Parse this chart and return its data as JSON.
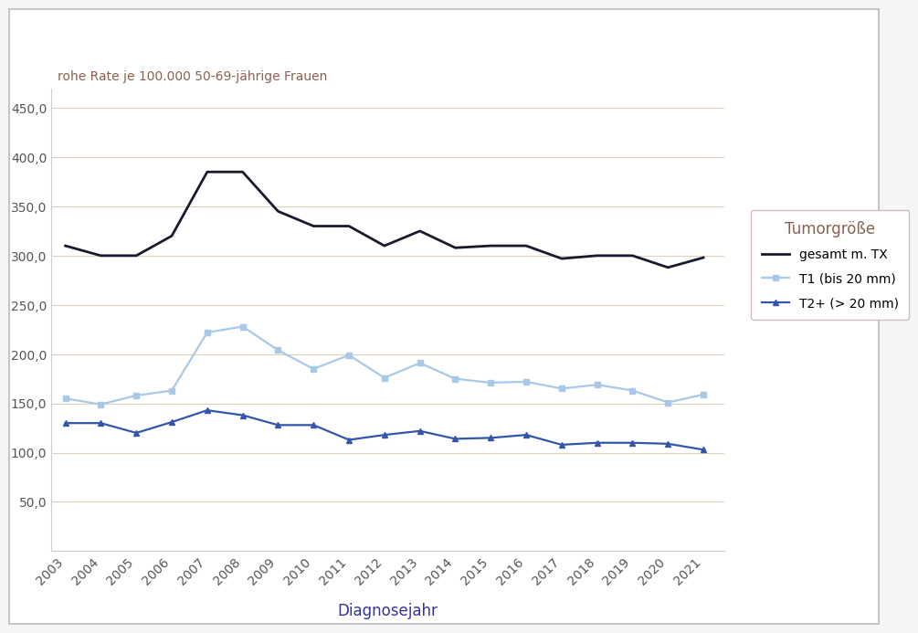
{
  "years": [
    2003,
    2004,
    2005,
    2006,
    2007,
    2008,
    2009,
    2010,
    2011,
    2012,
    2013,
    2014,
    2015,
    2016,
    2017,
    2018,
    2019,
    2020,
    2021
  ],
  "gesamt": [
    310,
    300,
    300,
    320,
    385,
    385,
    345,
    330,
    330,
    310,
    325,
    308,
    310,
    310,
    297,
    300,
    300,
    288,
    298
  ],
  "T1": [
    155,
    149,
    158,
    163,
    222,
    228,
    204,
    185,
    199,
    176,
    191,
    175,
    171,
    172,
    165,
    169,
    163,
    151,
    159
  ],
  "T2plus": [
    130,
    130,
    120,
    131,
    143,
    138,
    128,
    128,
    113,
    118,
    122,
    114,
    115,
    118,
    108,
    110,
    110,
    109,
    103
  ],
  "color_gesamt": "#1a1a2e",
  "color_T1": "#a8c8e8",
  "color_T2plus": "#3355aa",
  "ylabel": "rohe Rate je 100.000 50-69-jährige Frauen",
  "xlabel": "Diagnosejahr",
  "legend_title": "Tumorgröße",
  "legend_labels": [
    "gesamt m. TX",
    "T1 (bis 20 mm)",
    "T2+ (> 20 mm)"
  ],
  "ylim": [
    0,
    470
  ],
  "yticks": [
    50,
    100,
    150,
    200,
    250,
    300,
    350,
    400,
    450
  ],
  "background_color": "#f5f5f5",
  "plot_bg_color": "#ffffff",
  "frame_color": "#cccccc",
  "grid_color": "#ddd0bb",
  "ylabel_color": "#8b6050",
  "tick_color": "#555555",
  "xlabel_color": "#333399",
  "legend_title_color": "#8b6050",
  "title_fontsize": 10,
  "axis_label_fontsize": 12,
  "tick_fontsize": 10,
  "legend_title_fontsize": 12,
  "legend_fontsize": 10
}
